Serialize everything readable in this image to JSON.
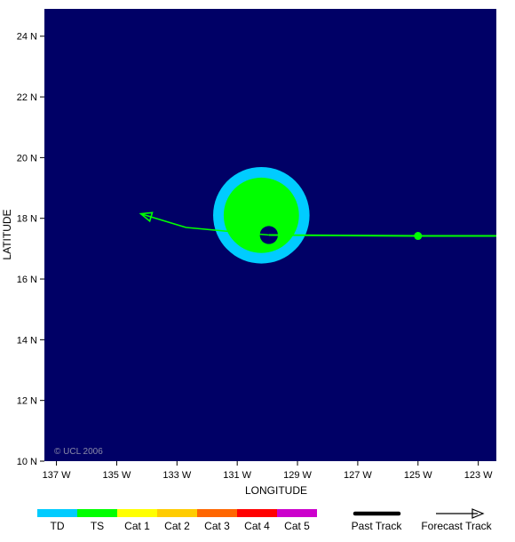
{
  "map": {
    "x_axis_title": "LONGITUDE",
    "y_axis_title": "LATITUDE",
    "copyright": "© UCL 2006",
    "background_color": "#000066",
    "lon_range": [
      -137.4,
      -122.4
    ],
    "lat_range": [
      10,
      24.9
    ],
    "x_ticks": [
      {
        "value": -137,
        "label": "137 W"
      },
      {
        "value": -135,
        "label": "135 W"
      },
      {
        "value": -133,
        "label": "133 W"
      },
      {
        "value": -131,
        "label": "131 W"
      },
      {
        "value": -129,
        "label": "129 W"
      },
      {
        "value": -127,
        "label": "127 W"
      },
      {
        "value": -125,
        "label": "125 W"
      },
      {
        "value": -123,
        "label": "123 W"
      }
    ],
    "y_ticks": [
      {
        "value": 10,
        "label": "10 N"
      },
      {
        "value": 12,
        "label": "12 N"
      },
      {
        "value": 14,
        "label": "14 N"
      },
      {
        "value": 16,
        "label": "16 N"
      },
      {
        "value": 18,
        "label": "18 N"
      },
      {
        "value": 20,
        "label": "20 N"
      },
      {
        "value": 22,
        "label": "22 N"
      },
      {
        "value": 24,
        "label": "24 N"
      }
    ],
    "wind_field": {
      "center": {
        "lon": -130.2,
        "lat": 18.1
      },
      "td_radius_deg": 1.6,
      "ts_radius_deg": 1.25,
      "eye": {
        "lon": -129.95,
        "lat": 17.45,
        "radius_deg": 0.3
      }
    },
    "past_track": [
      {
        "lon": -122.4,
        "lat": 17.42
      },
      {
        "lon": -125.0,
        "lat": 17.42
      },
      {
        "lon": -129.95,
        "lat": 17.45
      }
    ],
    "current_position": {
      "lon": -125.0,
      "lat": 17.42
    },
    "forecast_track": [
      {
        "lon": -129.95,
        "lat": 17.45
      },
      {
        "lon": -132.7,
        "lat": 17.7
      },
      {
        "lon": -134.2,
        "lat": 18.15
      }
    ],
    "track_color": "#00ff00"
  },
  "legend": {
    "categories": [
      {
        "label": "TD",
        "color": "#00ccff"
      },
      {
        "label": "TS",
        "color": "#00ff00"
      },
      {
        "label": "Cat 1",
        "color": "#ffff00"
      },
      {
        "label": "Cat 2",
        "color": "#ffcc00"
      },
      {
        "label": "Cat 3",
        "color": "#ff6600"
      },
      {
        "label": "Cat 4",
        "color": "#ff0000"
      },
      {
        "label": "Cat 5",
        "color": "#cc00cc"
      }
    ],
    "past_track_label": "Past Track",
    "forecast_track_label": "Forecast Track"
  }
}
